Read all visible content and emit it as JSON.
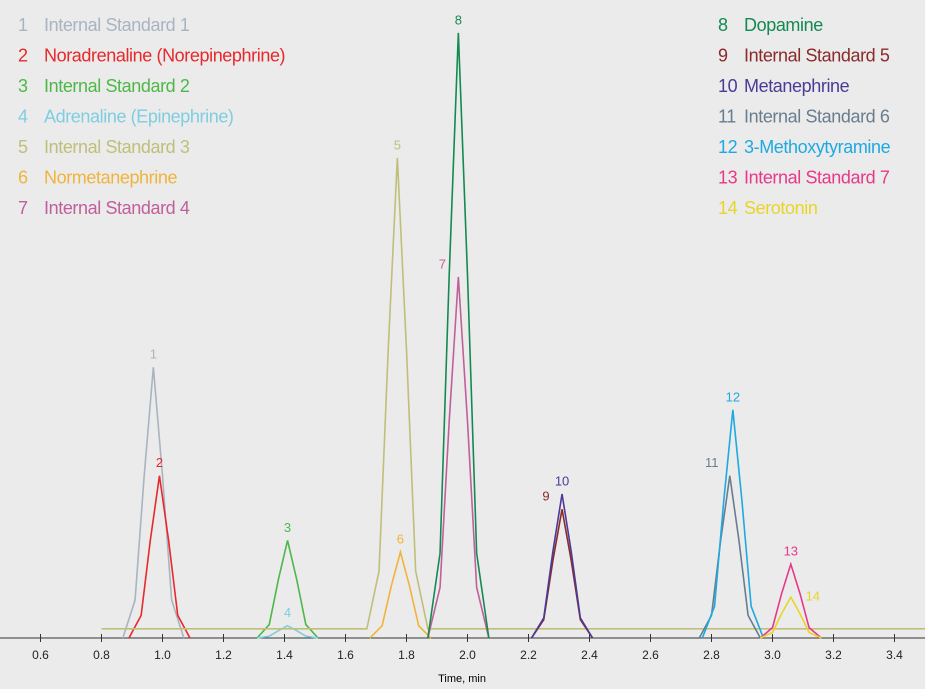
{
  "chart_data": {
    "type": "line",
    "x_label": "Time, min",
    "xlim": [
      0.5,
      3.5
    ],
    "ylim": [
      0,
      100
    ],
    "xticks": [
      0.6,
      0.8,
      {
        "value": 1,
        "label": "1.0"
      },
      1.2,
      1.4,
      1.6,
      1.8,
      {
        "value": 2,
        "label": "2.0"
      },
      2.2,
      2.4,
      2.6,
      2.8,
      {
        "value": 3,
        "label": "3.0"
      },
      3.2,
      3.4
    ],
    "series": [
      {
        "peak_label": "1",
        "name": "Internal Standard 1",
        "color": "#a9b4c2",
        "x": [
          0.87,
          0.91,
          0.94,
          0.97,
          1.0,
          1.03,
          1.07
        ],
        "values": [
          0,
          6.2,
          26.6,
          44.4,
          26.6,
          6.2,
          0
        ]
      },
      {
        "peak_label": "2",
        "name": "Noradrenaline (Norepinephrine)",
        "color": "#e8282b",
        "x": [
          0.89,
          0.93,
          0.96,
          0.99,
          1.02,
          1.05,
          1.09
        ],
        "values": [
          0,
          3.7,
          16,
          26.6,
          16,
          3.7,
          0
        ]
      },
      {
        "peak_label": "3",
        "name": "Internal Standard 2",
        "color": "#4db848",
        "x": [
          1.31,
          1.35,
          1.38,
          1.41,
          1.44,
          1.47,
          1.51
        ],
        "values": [
          0,
          2.2,
          9.6,
          16,
          9.6,
          2.2,
          0
        ]
      },
      {
        "peak_label": "4",
        "name": "Adrenaline (Epinephrine)",
        "color": "#7fcde0",
        "x": [
          1.31,
          1.35,
          1.38,
          1.41,
          1.44,
          1.47,
          1.51
        ],
        "values": [
          0,
          0.3,
          1.2,
          2,
          1.2,
          0.3,
          0
        ]
      },
      {
        "peak_label": "5",
        "name": "Internal Standard 3",
        "color": "#bfbf7a",
        "x": [
          0.8,
          1.67,
          1.71,
          1.74,
          1.77,
          1.8,
          1.83,
          1.87,
          3.5
        ],
        "values": [
          1.5,
          1.5,
          11,
          47.2,
          78.7,
          47.2,
          11,
          1.5,
          1.5
        ]
      },
      {
        "peak_label": "6",
        "name": "Normetanephrine",
        "color": "#f0b43c",
        "x": [
          1.68,
          1.72,
          1.75,
          1.78,
          1.81,
          1.84,
          1.88
        ],
        "values": [
          0,
          2,
          8.5,
          14.1,
          8.5,
          2,
          0
        ]
      },
      {
        "peak_label": "7",
        "name": "Internal Standard 4",
        "color": "#c0609a",
        "x": [
          1.87,
          1.91,
          1.94,
          1.97,
          2.0,
          2.03,
          2.07
        ],
        "values": [
          0,
          8.3,
          35.5,
          59.2,
          35.5,
          8.3,
          0
        ]
      },
      {
        "peak_label": "8",
        "name": "Dopamine",
        "color": "#138a52",
        "x": [
          1.87,
          1.91,
          1.94,
          1.97,
          2.0,
          2.03,
          2.07
        ],
        "values": [
          0,
          13.9,
          59.5,
          99.2,
          59.5,
          13.9,
          0
        ]
      },
      {
        "peak_label": "9",
        "name": "Internal Standard 5",
        "color": "#8b2a2a",
        "x": [
          2.21,
          2.25,
          2.28,
          2.31,
          2.34,
          2.37,
          2.41
        ],
        "values": [
          0,
          3,
          12.7,
          21.1,
          12.7,
          3,
          0
        ]
      },
      {
        "peak_label": "10",
        "name": "Metanephrine",
        "color": "#4b3a96",
        "x": [
          2.21,
          2.25,
          2.28,
          2.31,
          2.34,
          2.37,
          2.41
        ],
        "values": [
          0,
          3.3,
          14.2,
          23.6,
          14.2,
          3.3,
          0
        ]
      },
      {
        "peak_label": "11",
        "name": "Internal Standard 6",
        "color": "#6a7d8e",
        "x": [
          2.76,
          2.8,
          2.83,
          2.86,
          2.89,
          2.92,
          2.96
        ],
        "values": [
          0,
          3.7,
          16,
          26.6,
          16,
          3.7,
          0
        ]
      },
      {
        "peak_label": "12",
        "name": "3-Methoxytyramine",
        "color": "#1ea9e1",
        "x": [
          2.77,
          2.81,
          2.84,
          2.87,
          2.9,
          2.93,
          2.97
        ],
        "values": [
          0,
          5.2,
          22.4,
          37.4,
          22.4,
          5.2,
          0
        ]
      },
      {
        "peak_label": "13",
        "name": "Internal Standard 7",
        "color": "#e8388a",
        "x": [
          2.96,
          3.0,
          3.03,
          3.06,
          3.09,
          3.12,
          3.16
        ],
        "values": [
          0,
          1.7,
          7.3,
          12.1,
          7.3,
          1.7,
          0
        ]
      },
      {
        "peak_label": "14",
        "name": "Serotonin",
        "color": "#e8d52a",
        "x": [
          2.96,
          3.0,
          3.03,
          3.06,
          3.09,
          3.12,
          3.16
        ],
        "values": [
          0,
          0.9,
          4,
          6.7,
          4,
          0.9,
          0
        ]
      }
    ]
  }
}
